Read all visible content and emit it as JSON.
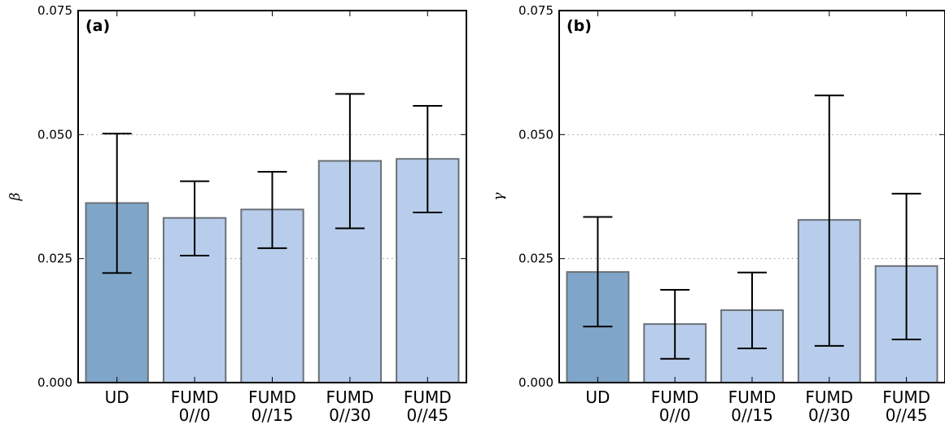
{
  "chart_data": [
    {
      "type": "bar",
      "panel_label": "(a)",
      "ylabel": "β",
      "ylim": [
        0,
        0.075
      ],
      "yticks": [
        "0.000",
        "0.025",
        "0.050",
        "0.075"
      ],
      "categories": [
        [
          "UD"
        ],
        [
          "FUMD",
          "0//0"
        ],
        [
          "FUMD",
          "0//15"
        ],
        [
          "FUMD",
          "0//30"
        ],
        [
          "FUMD",
          "0//45"
        ]
      ],
      "values": [
        0.0362,
        0.0332,
        0.0349,
        0.0447,
        0.0451
      ],
      "error_low": [
        0.0221,
        0.0256,
        0.0271,
        0.0311,
        0.0343
      ],
      "error_high": [
        0.0502,
        0.0406,
        0.0425,
        0.0582,
        0.0558
      ],
      "bar_colors": [
        "#7fa6c8",
        "#b8cdeb",
        "#b8cdeb",
        "#b8cdeb",
        "#b8cdeb"
      ],
      "grid": "horizontal dotted at 0.025 and 0.050"
    },
    {
      "type": "bar",
      "panel_label": "(b)",
      "ylabel": "γ",
      "ylim": [
        0,
        0.075
      ],
      "yticks": [
        "0.000",
        "0.025",
        "0.050",
        "0.075"
      ],
      "categories": [
        [
          "UD"
        ],
        [
          "FUMD",
          "0//0"
        ],
        [
          "FUMD",
          "0//15"
        ],
        [
          "FUMD",
          "0//30"
        ],
        [
          "FUMD",
          "0//45"
        ]
      ],
      "values": [
        0.0223,
        0.0118,
        0.0146,
        0.0328,
        0.0235
      ],
      "error_low": [
        0.0113,
        0.0048,
        0.0069,
        0.0074,
        0.0087
      ],
      "error_high": [
        0.0334,
        0.0187,
        0.0222,
        0.0579,
        0.0381
      ],
      "bar_colors": [
        "#7fa6c8",
        "#b8cdeb",
        "#b8cdeb",
        "#b8cdeb",
        "#b8cdeb"
      ],
      "grid": "horizontal dotted at 0.025 and 0.050"
    }
  ]
}
